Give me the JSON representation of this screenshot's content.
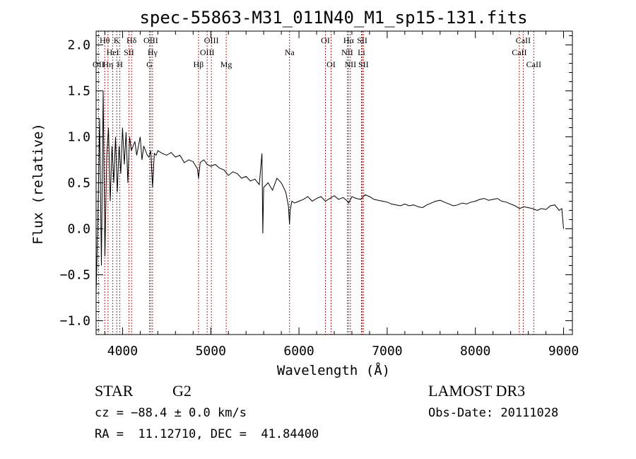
{
  "chart_data": {
    "type": "line",
    "title": "spec-55863-M31_011N40_M1_sp15-131.fits",
    "xlabel": "Wavelength (Å)",
    "ylabel": "Flux (relative)",
    "xlim": [
      3700,
      9100
    ],
    "ylim": [
      -1.15,
      2.15
    ],
    "xticks": [
      4000,
      5000,
      6000,
      7000,
      8000,
      9000
    ],
    "yticks": [
      -1.0,
      -0.5,
      0.0,
      0.5,
      1.0,
      1.5,
      2.0
    ],
    "ytick_labels": [
      "−1.0",
      "−0.5",
      "0.0",
      "0.5",
      "1.0",
      "1.5",
      "2.0"
    ],
    "series": [
      {
        "name": "flux",
        "x": [
          3700,
          3720,
          3740,
          3760,
          3780,
          3800,
          3820,
          3840,
          3860,
          3880,
          3900,
          3920,
          3940,
          3960,
          3980,
          4000,
          4020,
          4040,
          4060,
          4080,
          4100,
          4120,
          4140,
          4160,
          4180,
          4200,
          4220,
          4240,
          4260,
          4280,
          4300,
          4320,
          4340,
          4360,
          4380,
          4400,
          4450,
          4500,
          4550,
          4600,
          4650,
          4700,
          4750,
          4800,
          4850,
          4861,
          4880,
          4920,
          4960,
          5000,
          5050,
          5100,
          5150,
          5200,
          5250,
          5300,
          5350,
          5400,
          5450,
          5500,
          5550,
          5580,
          5590,
          5600,
          5650,
          5700,
          5750,
          5800,
          5850,
          5880,
          5893,
          5900,
          5920,
          5950,
          6000,
          6050,
          6100,
          6150,
          6200,
          6250,
          6300,
          6350,
          6400,
          6450,
          6500,
          6550,
          6563,
          6600,
          6650,
          6700,
          6750,
          6800,
          6850,
          6900,
          6950,
          7000,
          7050,
          7100,
          7150,
          7200,
          7250,
          7300,
          7350,
          7400,
          7450,
          7500,
          7550,
          7600,
          7650,
          7700,
          7750,
          7800,
          7850,
          7900,
          7950,
          8000,
          8050,
          8100,
          8150,
          8200,
          8250,
          8300,
          8350,
          8400,
          8450,
          8500,
          8550,
          8600,
          8650,
          8700,
          8750,
          8800,
          8850,
          8900,
          8950,
          8980,
          9000
        ],
        "y": [
          -0.7,
          0.1,
          1.2,
          -0.4,
          1.5,
          -0.3,
          0.8,
          1.1,
          0.3,
          0.9,
          0.5,
          1.0,
          0.4,
          0.9,
          0.6,
          1.1,
          0.7,
          1.05,
          0.5,
          1.0,
          0.85,
          0.9,
          0.95,
          0.8,
          0.9,
          1.0,
          0.75,
          0.9,
          0.85,
          0.8,
          0.78,
          0.85,
          0.45,
          0.82,
          0.8,
          0.85,
          0.82,
          0.8,
          0.83,
          0.78,
          0.8,
          0.72,
          0.75,
          0.73,
          0.65,
          0.55,
          0.72,
          0.75,
          0.7,
          0.68,
          0.7,
          0.66,
          0.64,
          0.58,
          0.62,
          0.6,
          0.55,
          0.57,
          0.52,
          0.54,
          0.48,
          0.82,
          -0.05,
          0.45,
          0.5,
          0.42,
          0.55,
          0.5,
          0.4,
          0.25,
          0.05,
          0.2,
          0.3,
          0.28,
          0.3,
          0.32,
          0.35,
          0.3,
          0.33,
          0.35,
          0.3,
          0.33,
          0.36,
          0.32,
          0.34,
          0.3,
          0.28,
          0.35,
          0.33,
          0.32,
          0.37,
          0.35,
          0.32,
          0.31,
          0.3,
          0.29,
          0.27,
          0.26,
          0.25,
          0.27,
          0.25,
          0.26,
          0.24,
          0.23,
          0.26,
          0.28,
          0.3,
          0.31,
          0.29,
          0.27,
          0.25,
          0.26,
          0.28,
          0.27,
          0.29,
          0.3,
          0.32,
          0.33,
          0.31,
          0.32,
          0.33,
          0.3,
          0.29,
          0.27,
          0.25,
          0.22,
          0.24,
          0.23,
          0.22,
          0.2,
          0.22,
          0.21,
          0.25,
          0.26,
          0.2,
          0.22,
          0.0
        ]
      }
    ],
    "lines": [
      {
        "name": "OII",
        "wave": 3727,
        "row": 2
      },
      {
        "name": "Hθ",
        "wave": 3798,
        "row": 0
      },
      {
        "name": "Hη",
        "wave": 3835,
        "row": 2
      },
      {
        "name": "HeI",
        "wave": 3889,
        "row": 1
      },
      {
        "name": "K",
        "wave": 3934,
        "row": 0
      },
      {
        "name": "H",
        "wave": 3969,
        "row": 2
      },
      {
        "name": "SII",
        "wave": 4072,
        "row": 1
      },
      {
        "name": "Hδ",
        "wave": 4102,
        "row": 0
      },
      {
        "name": "OIII",
        "wave": 4320,
        "row": 0
      },
      {
        "name": "Hγ",
        "wave": 4340,
        "row": 1
      },
      {
        "name": "G",
        "wave": 4305,
        "row": 2
      },
      {
        "name": "Hβ",
        "wave": 4861,
        "row": 2
      },
      {
        "name": "OIII",
        "wave": 4959,
        "row": 1
      },
      {
        "name": "OIII",
        "wave": 5007,
        "row": 0
      },
      {
        "name": "Mg",
        "wave": 5175,
        "row": 2
      },
      {
        "name": "Na",
        "wave": 5893,
        "row": 1
      },
      {
        "name": "OI",
        "wave": 6300,
        "row": 0
      },
      {
        "name": "OI",
        "wave": 6364,
        "row": 2
      },
      {
        "name": "NII",
        "wave": 6548,
        "row": 1
      },
      {
        "name": "Hα",
        "wave": 6563,
        "row": 0
      },
      {
        "name": "NII",
        "wave": 6583,
        "row": 2
      },
      {
        "name": "Li",
        "wave": 6708,
        "row": 1
      },
      {
        "name": "SII",
        "wave": 6717,
        "row": 0
      },
      {
        "name": "SII",
        "wave": 6731,
        "row": 2
      },
      {
        "name": "CaII",
        "wave": 8498,
        "row": 1
      },
      {
        "name": "CaII",
        "wave": 8542,
        "row": 0
      },
      {
        "name": "CaII",
        "wave": 8662,
        "row": 2
      }
    ]
  },
  "info": {
    "object_class": "STAR",
    "subclass": "G2",
    "survey": "LAMOST DR3",
    "cz": "cz = −88.4 ± 0.0 km/s",
    "obs_date": "Obs-Date: 20111028",
    "coords": "RA =  11.12710, DEC =  41.84400"
  },
  "colors": {
    "ink": "#000000",
    "line_marker": "#b22222",
    "background": "#ffffff"
  }
}
